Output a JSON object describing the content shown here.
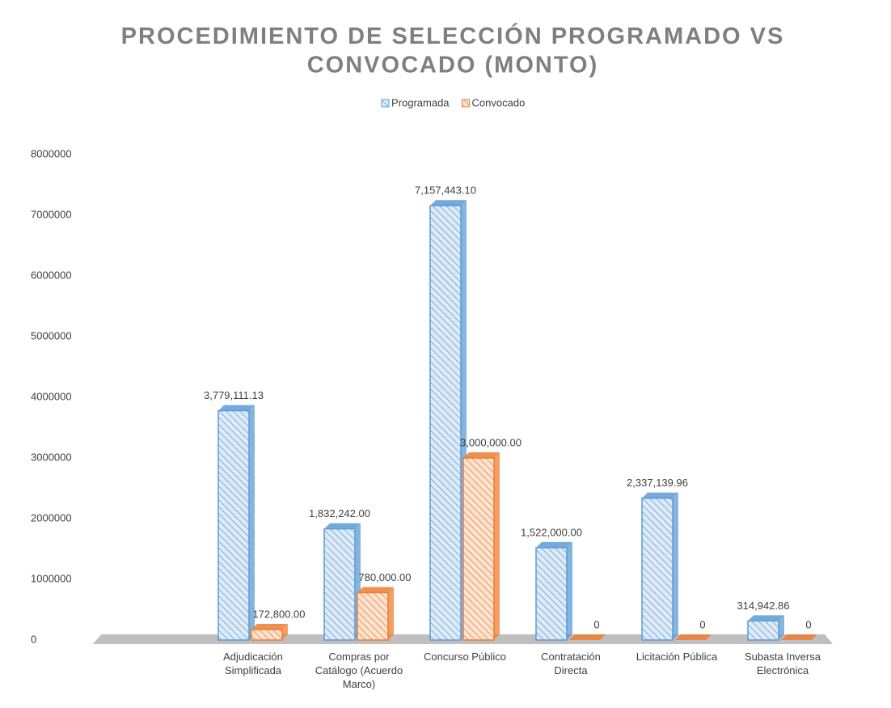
{
  "chart_data": {
    "type": "bar3d",
    "title": "PROCEDIMIENTO DE SELECCIÓN PROGRAMADO VS CONVOCADO (MONTO)",
    "categories": [
      "Adjudicación Simplificada",
      "Compras por Catálogo (Acuerdo Marco)",
      "Concurso Público",
      "Contratación Directa",
      "Licitación Pública",
      "Subasta Inversa Electrónica"
    ],
    "series": [
      {
        "name": "Programada",
        "color": "#5b9bd5",
        "values": [
          3779111.13,
          1832242.0,
          7157443.1,
          1522000.0,
          2337139.96,
          314942.86
        ],
        "value_labels": [
          "3,779,111.13",
          "1,832,242.00",
          "7,157,443.10",
          "1,522,000.00",
          "2,337,139.96",
          "314,942.86"
        ]
      },
      {
        "name": "Convocado",
        "color": "#ed7d31",
        "values": [
          172800.0,
          780000.0,
          3000000.0,
          0,
          0,
          0
        ],
        "value_labels": [
          "172,800.00",
          "780,000.00",
          "3,000,000.00",
          "0",
          "0",
          "0"
        ]
      }
    ],
    "ylim": [
      0,
      8000000
    ],
    "yticks": [
      0,
      1000000,
      2000000,
      3000000,
      4000000,
      5000000,
      6000000,
      7000000,
      8000000
    ],
    "legend": "top"
  }
}
